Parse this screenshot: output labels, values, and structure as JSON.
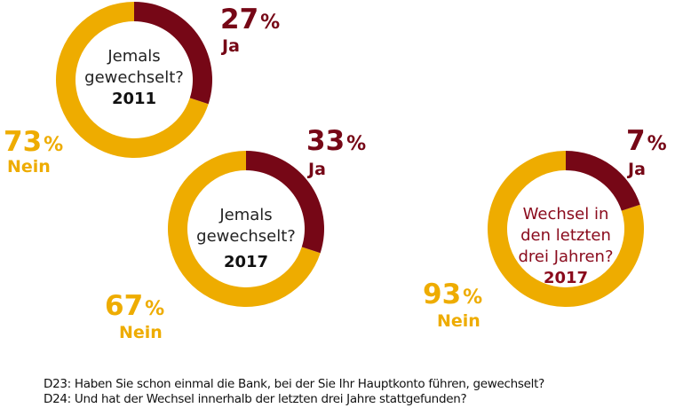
{
  "colors": {
    "ja": "#760716",
    "nein": "#EEAC00",
    "center_text_default": "#222222",
    "center_text_red": "#8A0A1C",
    "year_default": "#111111"
  },
  "chart_data": [
    {
      "type": "pie",
      "variant": "donut",
      "title": "Jemals gewechselt? 2011",
      "center_lines": [
        "Jemals",
        "gewechselt?"
      ],
      "year": "2011",
      "slices": [
        {
          "name": "Ja",
          "value": 27,
          "value_label": "27",
          "color": "#760716"
        },
        {
          "name": "Nein",
          "value": 73,
          "value_label": "73",
          "color": "#EEAC00"
        }
      ]
    },
    {
      "type": "pie",
      "variant": "donut",
      "title": "Jemals gewechselt? 2017",
      "center_lines": [
        "Jemals",
        "gewechselt?"
      ],
      "year": "2017",
      "slices": [
        {
          "name": "Ja",
          "value": 33,
          "value_label": "33",
          "color": "#760716"
        },
        {
          "name": "Nein",
          "value": 67,
          "value_label": "67",
          "color": "#EEAC00"
        }
      ]
    },
    {
      "type": "pie",
      "variant": "donut",
      "title": "Wechsel in den letzten drei Jahren? 2017",
      "center_lines": [
        "Wechsel in",
        "den letzten",
        "drei Jahren?"
      ],
      "year": "2017",
      "center_color": "red",
      "slices": [
        {
          "name": "Ja",
          "value": 7,
          "value_label": "7",
          "color": "#760716"
        },
        {
          "name": "Nein",
          "value": 93,
          "value_label": "93",
          "color": "#EEAC00"
        }
      ]
    }
  ],
  "percent_sign": "%",
  "footnotes": [
    "D23: Haben Sie schon einmal die Bank, bei der Sie Ihr Hauptkonto führen, gewechselt?",
    "D24: Und hat der Wechsel innerhalb der letzten drei Jahre stattgefunden?"
  ]
}
